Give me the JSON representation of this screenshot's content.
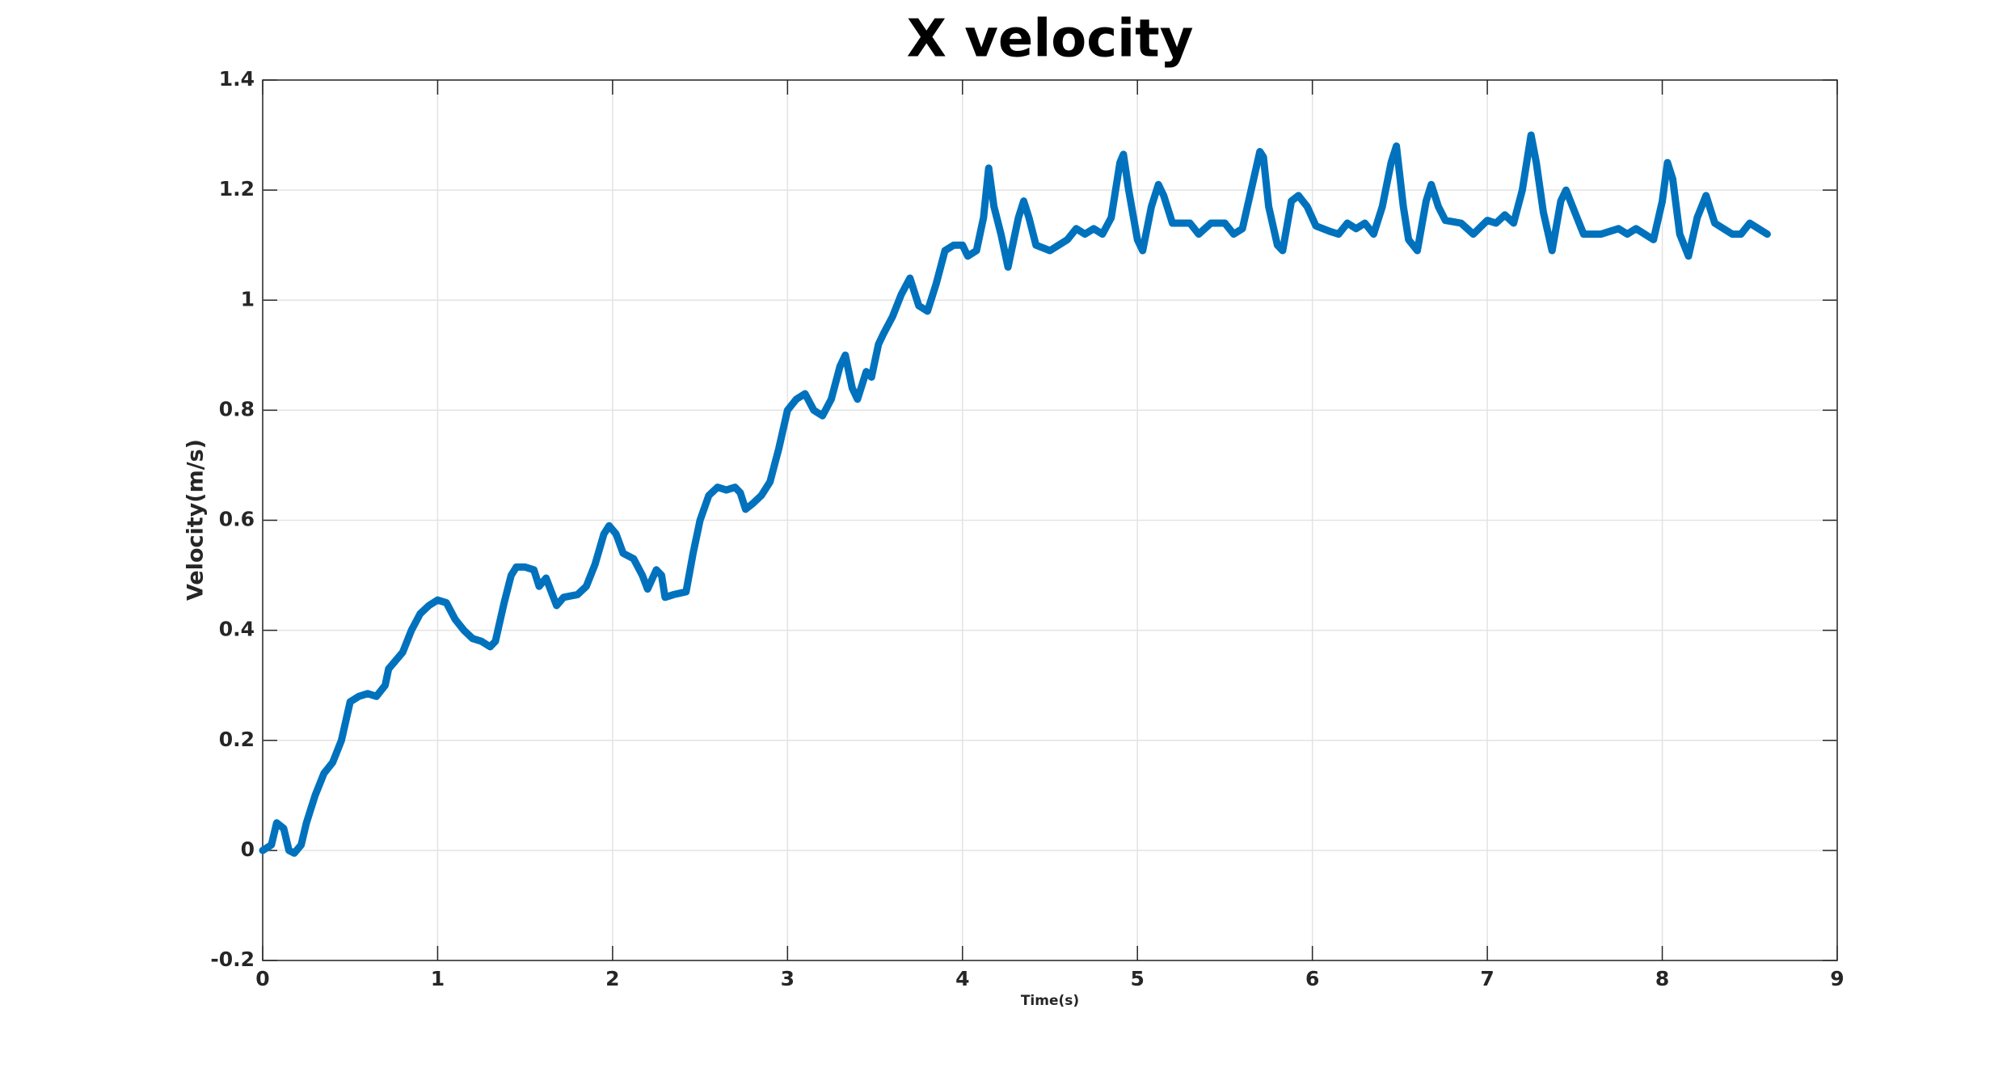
{
  "chart_data": {
    "type": "line",
    "title": "X velocity",
    "x_label": "Time(s)",
    "y_label": "Velocity(m/s)",
    "xlim": [
      0,
      9
    ],
    "xticks": [
      0,
      1,
      2,
      3,
      4,
      5,
      6,
      7,
      8,
      9
    ],
    "ylim": [
      -0.2,
      1.4
    ],
    "yticks": [
      -0.2,
      0,
      0.2,
      0.4,
      0.6,
      0.8,
      1,
      1.2,
      1.4
    ],
    "grid": true,
    "series": [
      {
        "color": "#0072bd",
        "x": [
          0,
          0.05,
          0.08,
          0.12,
          0.15,
          0.18,
          0.22,
          0.25,
          0.3,
          0.35,
          0.4,
          0.45,
          0.5,
          0.55,
          0.6,
          0.65,
          0.7,
          0.72,
          0.8,
          0.85,
          0.9,
          0.95,
          1.0,
          1.05,
          1.1,
          1.15,
          1.2,
          1.25,
          1.3,
          1.33,
          1.38,
          1.42,
          1.45,
          1.5,
          1.55,
          1.58,
          1.62,
          1.65,
          1.68,
          1.72,
          1.8,
          1.85,
          1.9,
          1.95,
          1.98,
          2.02,
          2.06,
          2.12,
          2.17,
          2.2,
          2.25,
          2.28,
          2.3,
          2.35,
          2.42,
          2.46,
          2.5,
          2.55,
          2.6,
          2.65,
          2.7,
          2.73,
          2.76,
          2.8,
          2.85,
          2.9,
          2.95,
          3.0,
          3.05,
          3.1,
          3.15,
          3.2,
          3.25,
          3.3,
          3.33,
          3.37,
          3.4,
          3.45,
          3.48,
          3.52,
          3.55,
          3.6,
          3.65,
          3.7,
          3.75,
          3.8,
          3.85,
          3.9,
          3.95,
          4.0,
          4.03,
          4.08,
          4.12,
          4.15,
          4.18,
          4.22,
          4.26,
          4.32,
          4.35,
          4.38,
          4.42,
          4.5,
          4.55,
          4.6,
          4.65,
          4.7,
          4.75,
          4.8,
          4.85,
          4.9,
          4.92,
          4.95,
          5.0,
          5.03,
          5.08,
          5.12,
          5.15,
          5.2,
          5.3,
          5.35,
          5.42,
          5.5,
          5.55,
          5.6,
          5.65,
          5.7,
          5.72,
          5.75,
          5.8,
          5.83,
          5.88,
          5.92,
          5.97,
          6.02,
          6.1,
          6.15,
          6.2,
          6.25,
          6.3,
          6.35,
          6.4,
          6.45,
          6.48,
          6.52,
          6.55,
          6.6,
          6.65,
          6.68,
          6.72,
          6.76,
          6.85,
          6.92,
          7.0,
          7.05,
          7.1,
          7.15,
          7.2,
          7.25,
          7.28,
          7.32,
          7.37,
          7.42,
          7.45,
          7.5,
          7.55,
          7.65,
          7.75,
          7.8,
          7.85,
          7.95,
          8.0,
          8.03,
          8.06,
          8.1,
          8.15,
          8.2,
          8.25,
          8.3,
          8.35,
          8.4,
          8.45,
          8.5,
          8.55,
          8.6
        ],
        "values": [
          0,
          0.01,
          0.05,
          0.04,
          0.0,
          -0.005,
          0.01,
          0.05,
          0.1,
          0.14,
          0.16,
          0.2,
          0.27,
          0.28,
          0.285,
          0.28,
          0.3,
          0.33,
          0.36,
          0.4,
          0.43,
          0.445,
          0.455,
          0.45,
          0.42,
          0.4,
          0.385,
          0.38,
          0.37,
          0.38,
          0.45,
          0.5,
          0.515,
          0.515,
          0.51,
          0.48,
          0.495,
          0.47,
          0.445,
          0.46,
          0.465,
          0.48,
          0.52,
          0.575,
          0.59,
          0.575,
          0.54,
          0.53,
          0.5,
          0.475,
          0.51,
          0.5,
          0.46,
          0.465,
          0.47,
          0.54,
          0.6,
          0.645,
          0.66,
          0.655,
          0.66,
          0.65,
          0.62,
          0.63,
          0.645,
          0.67,
          0.73,
          0.8,
          0.82,
          0.83,
          0.8,
          0.79,
          0.82,
          0.88,
          0.9,
          0.84,
          0.82,
          0.87,
          0.86,
          0.92,
          0.94,
          0.97,
          1.01,
          1.04,
          0.99,
          0.98,
          1.03,
          1.09,
          1.1,
          1.1,
          1.08,
          1.09,
          1.15,
          1.24,
          1.17,
          1.12,
          1.06,
          1.15,
          1.18,
          1.15,
          1.1,
          1.09,
          1.1,
          1.11,
          1.13,
          1.12,
          1.13,
          1.12,
          1.15,
          1.25,
          1.265,
          1.2,
          1.11,
          1.09,
          1.17,
          1.21,
          1.19,
          1.14,
          1.14,
          1.12,
          1.14,
          1.14,
          1.12,
          1.13,
          1.2,
          1.27,
          1.26,
          1.17,
          1.1,
          1.09,
          1.18,
          1.19,
          1.17,
          1.135,
          1.125,
          1.12,
          1.14,
          1.13,
          1.14,
          1.12,
          1.17,
          1.25,
          1.28,
          1.17,
          1.11,
          1.09,
          1.18,
          1.21,
          1.17,
          1.145,
          1.14,
          1.12,
          1.145,
          1.14,
          1.155,
          1.14,
          1.2,
          1.3,
          1.25,
          1.16,
          1.09,
          1.18,
          1.2,
          1.16,
          1.12,
          1.12,
          1.13,
          1.12,
          1.13,
          1.11,
          1.18,
          1.25,
          1.22,
          1.12,
          1.08,
          1.15,
          1.19,
          1.14,
          1.13,
          1.12,
          1.12,
          1.14,
          1.13,
          1.12
        ]
      }
    ]
  }
}
